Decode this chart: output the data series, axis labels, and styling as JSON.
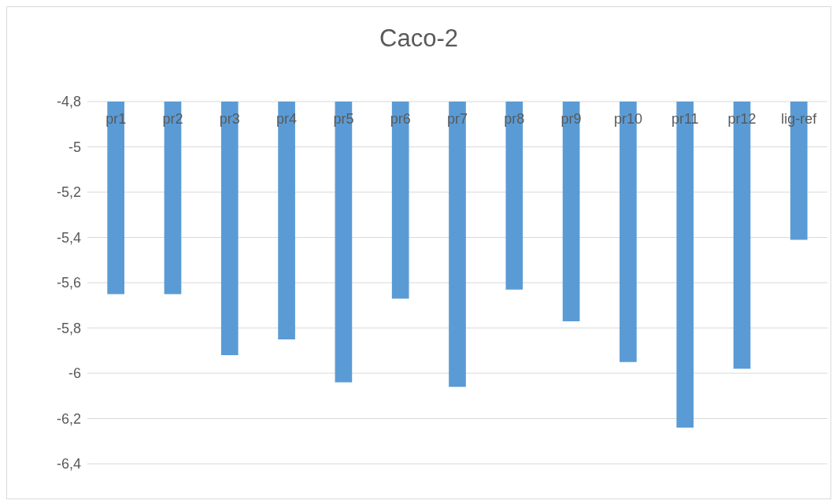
{
  "chart_data": {
    "type": "bar",
    "title": "Caco-2",
    "categories": [
      "pr1",
      "pr2",
      "pr3",
      "pr4",
      "pr5",
      "pr6",
      "pr7",
      "pr8",
      "pr9",
      "pr10",
      "pr11",
      "pr12",
      "lig-ref"
    ],
    "values": [
      -5.65,
      -5.65,
      -5.92,
      -5.85,
      -6.04,
      -5.67,
      -6.06,
      -5.63,
      -5.77,
      -5.95,
      -6.24,
      -5.98,
      -5.41
    ],
    "color": "#5b9bd5",
    "ylim": [
      -6.4,
      -4.8
    ],
    "yticks": [
      {
        "value": -4.8,
        "label": "-4,8"
      },
      -5,
      {
        "value": -5.2,
        "label": "-5,2"
      },
      {
        "value": -5.4,
        "label": "-5,4"
      },
      {
        "value": -5.6,
        "label": "-5,6"
      },
      {
        "value": -5.8,
        "label": "-5,8"
      },
      -6,
      {
        "value": -6.2,
        "label": "-6,2"
      },
      {
        "value": -6.4,
        "label": "-6,4"
      }
    ],
    "grid": "y"
  }
}
